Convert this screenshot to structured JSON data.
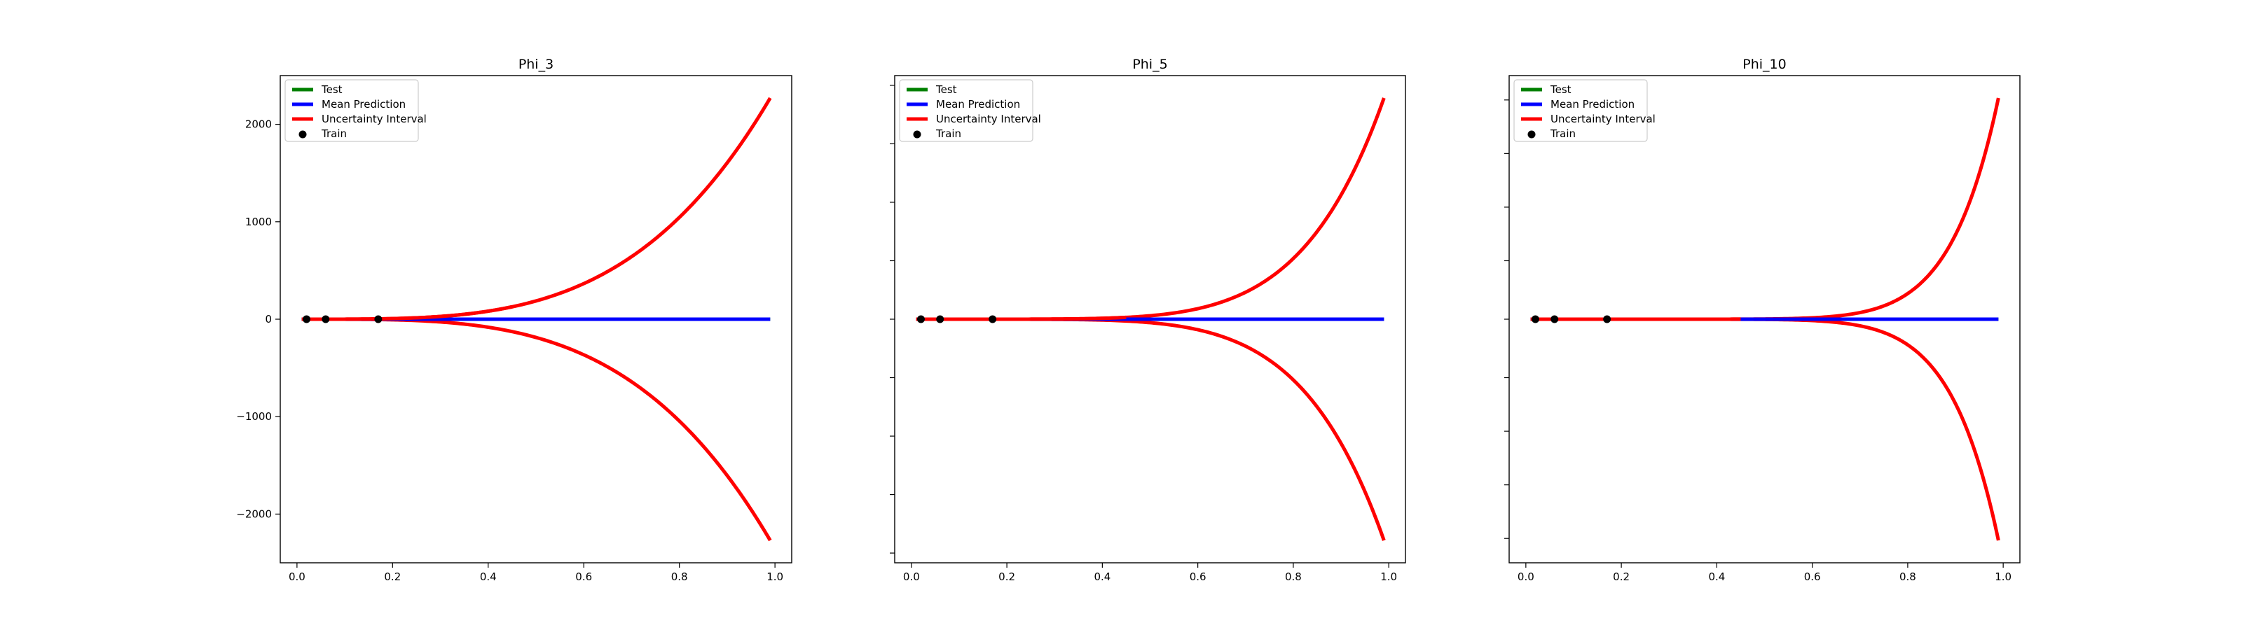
{
  "chart_data": [
    {
      "type": "line",
      "title": "Phi_3",
      "xlim": [
        -0.035,
        1.035
      ],
      "ylim": [
        -2500,
        2500
      ],
      "x_ticks": [
        0.0,
        0.2,
        0.4,
        0.6,
        0.8,
        1.0
      ],
      "x_tick_labels": [
        "0.0",
        "0.2",
        "0.4",
        "0.6",
        "0.8",
        "1.0"
      ],
      "y_ticks": [
        -2000,
        -1000,
        0,
        1000,
        2000
      ],
      "y_tick_labels": [
        "−2000",
        "−1000",
        "0",
        "1000",
        "2000"
      ],
      "band_power": 3.6,
      "band_max": 2270,
      "train_x": [
        0.02,
        0.06,
        0.17
      ],
      "train_y": [
        0,
        0,
        0
      ],
      "legend": [
        "Test",
        "Mean Prediction",
        "Uncertainty Interval",
        "Train"
      ]
    },
    {
      "type": "line",
      "title": "Phi_5",
      "xlim": [
        -0.035,
        1.035
      ],
      "ylim": [
        -2500,
        2500
      ],
      "x_ticks": [
        0.0,
        0.2,
        0.4,
        0.6,
        0.8,
        1.0
      ],
      "x_tick_labels": [
        "0.0",
        "0.2",
        "0.4",
        "0.6",
        "0.8",
        "1.0"
      ],
      "y_ticks": [
        -2400,
        -1800,
        -1200,
        -600,
        0,
        600,
        1200,
        1800,
        2400
      ],
      "y_tick_labels": [],
      "band_power": 6.0,
      "band_max": 2270,
      "train_x": [
        0.02,
        0.06,
        0.17
      ],
      "train_y": [
        0,
        0,
        0
      ],
      "legend": [
        "Test",
        "Mean Prediction",
        "Uncertainty Interval",
        "Train"
      ]
    },
    {
      "type": "line",
      "title": "Phi_10",
      "xlim": [
        -0.035,
        1.035
      ],
      "ylim": [
        -2500,
        2500
      ],
      "x_ticks": [
        0.0,
        0.2,
        0.4,
        0.6,
        0.8,
        1.0
      ],
      "x_tick_labels": [
        "0.0",
        "0.2",
        "0.4",
        "0.6",
        "0.8",
        "1.0"
      ],
      "y_ticks": [
        -2250,
        -1700,
        -1150,
        -600,
        0,
        600,
        1150,
        1700,
        2250
      ],
      "y_tick_labels": [],
      "band_power": 10.0,
      "band_max": 2270,
      "train_x": [
        0.02,
        0.06,
        0.17
      ],
      "train_y": [
        0,
        0,
        0
      ],
      "legend": [
        "Test",
        "Mean Prediction",
        "Uncertainty Interval",
        "Train"
      ]
    }
  ],
  "colors": {
    "test": "#008000",
    "mean": "#0000ff",
    "band": "#ff0000",
    "train": "#000000"
  }
}
